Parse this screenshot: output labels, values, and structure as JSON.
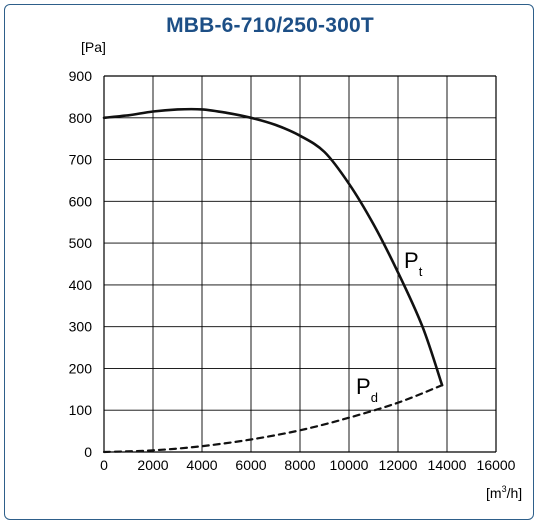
{
  "chart_data": {
    "type": "line",
    "title": "MBB-6-710/250-300T",
    "ylabel": "[Pa]",
    "xlabel_base": "[m",
    "xlabel_sup": "3",
    "xlabel_tail": "/h]",
    "xlim": [
      0,
      16000
    ],
    "ylim": [
      0,
      900
    ],
    "xticks": [
      0,
      2000,
      4000,
      6000,
      8000,
      10000,
      12000,
      14000,
      16000
    ],
    "yticks": [
      0,
      100,
      200,
      300,
      400,
      500,
      600,
      700,
      800,
      900
    ],
    "grid": true,
    "series": [
      {
        "name": "P",
        "name_sub": "t",
        "style": "solid",
        "points": [
          [
            0,
            800
          ],
          [
            1000,
            806
          ],
          [
            2000,
            815
          ],
          [
            3000,
            820
          ],
          [
            4000,
            820
          ],
          [
            5000,
            812
          ],
          [
            6000,
            800
          ],
          [
            7000,
            783
          ],
          [
            8000,
            757
          ],
          [
            9000,
            718
          ],
          [
            10000,
            642
          ],
          [
            11000,
            545
          ],
          [
            12000,
            430
          ],
          [
            13000,
            300
          ],
          [
            13800,
            160
          ]
        ]
      },
      {
        "name": "P",
        "name_sub": "d",
        "style": "dashed",
        "points": [
          [
            0,
            0
          ],
          [
            2000,
            4
          ],
          [
            4000,
            14
          ],
          [
            6000,
            30
          ],
          [
            8000,
            52
          ],
          [
            10000,
            82
          ],
          [
            12000,
            118
          ],
          [
            13800,
            160
          ]
        ]
      }
    ]
  }
}
